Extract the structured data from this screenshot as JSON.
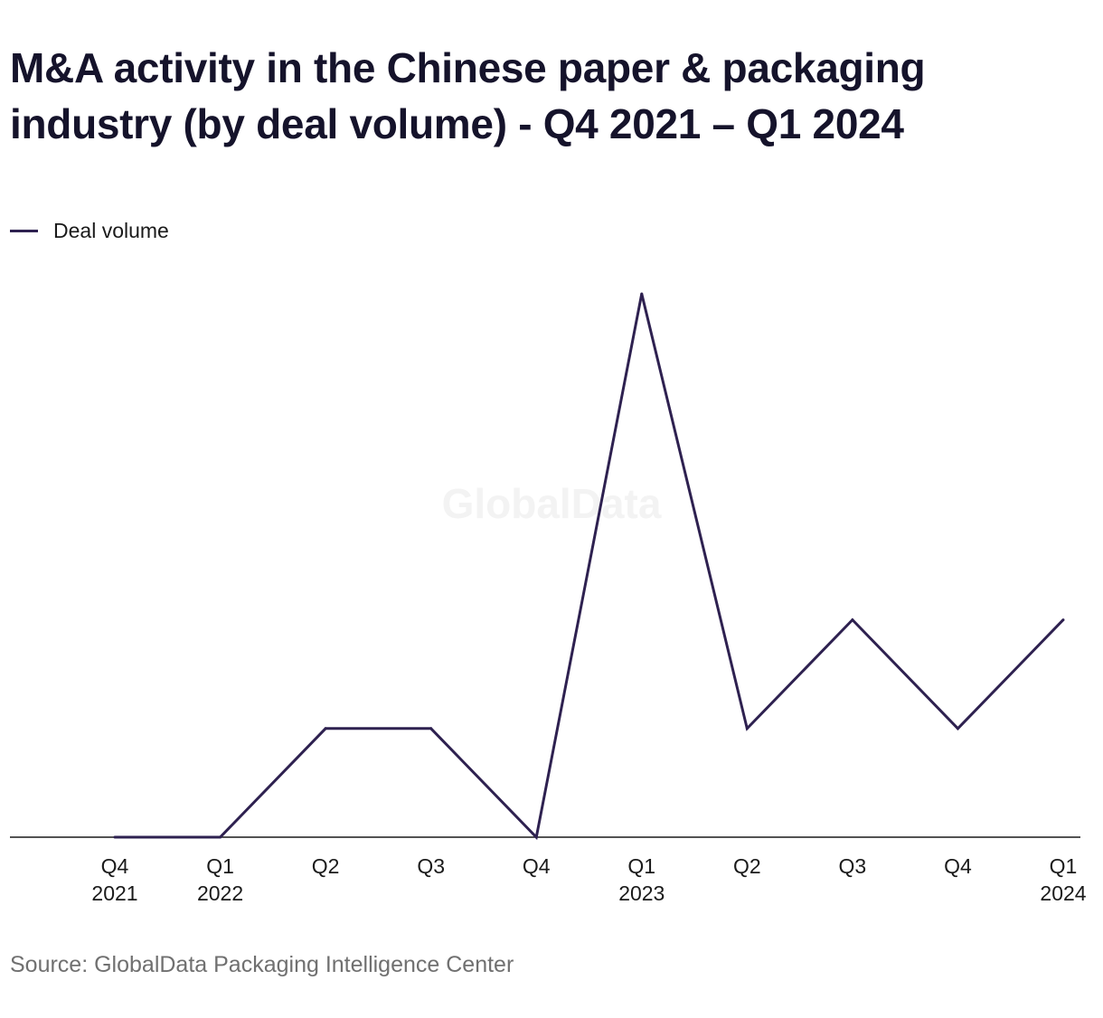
{
  "header": {
    "title": "M&A activity in the Chinese paper & packaging industry (by deal volume) - Q4 2021 – Q1 2024"
  },
  "legend": {
    "items": [
      {
        "label": "Deal volume",
        "color": "#2e2150"
      }
    ]
  },
  "watermark": {
    "text": "GlobalData"
  },
  "footer": {
    "source": "Source: GlobalData Packaging Intelligence Center"
  },
  "chart_data": {
    "type": "line",
    "categories": [
      "Q4 2021",
      "Q1 2022",
      "Q2",
      "Q3",
      "Q4",
      "Q1 2023",
      "Q2",
      "Q3",
      "Q4",
      "Q1 2024"
    ],
    "tick_labels": [
      [
        "Q4",
        "2021"
      ],
      [
        "Q1",
        "2022"
      ],
      [
        "Q2"
      ],
      [
        "Q3"
      ],
      [
        "Q4"
      ],
      [
        "Q1",
        "2023"
      ],
      [
        "Q2"
      ],
      [
        "Q3"
      ],
      [
        "Q4"
      ],
      [
        "Q1",
        "2024"
      ]
    ],
    "series": [
      {
        "name": "Deal volume",
        "values": [
          0,
          0,
          1,
          1,
          0,
          5,
          1,
          2,
          1,
          2
        ],
        "color": "#2e2150"
      }
    ],
    "ylim": [
      0,
      5
    ],
    "grid": false,
    "legend_position": "top-left"
  }
}
